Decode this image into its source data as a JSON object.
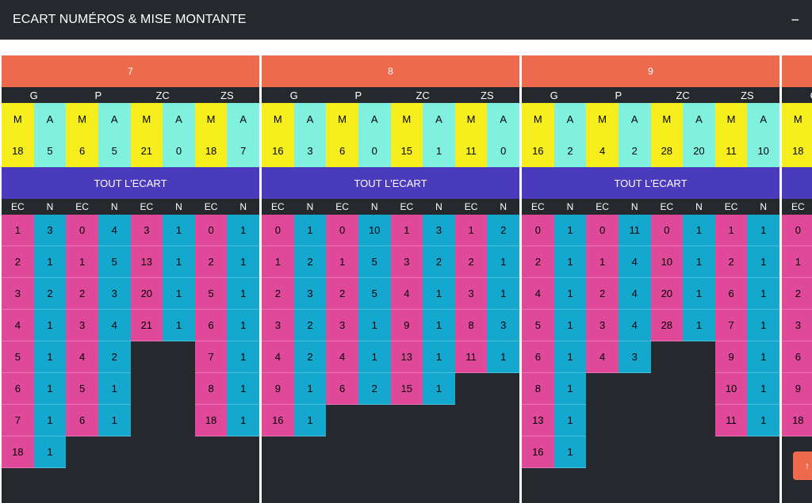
{
  "header": {
    "title": "ECART NUMÉROS & MISE MONTANTE",
    "collapse_label": "−"
  },
  "groups": [
    "G",
    "P",
    "ZC",
    "ZS"
  ],
  "ma_labels": [
    "M",
    "A"
  ],
  "col_labels": [
    "EC",
    "N"
  ],
  "banner_label": "TOUT L'ECART",
  "scroll_top_label": "↑",
  "panels": [
    {
      "number": "7",
      "mise": [
        [
          "18",
          "5"
        ],
        [
          "6",
          "5"
        ],
        [
          "21",
          "0"
        ],
        [
          "18",
          "7"
        ]
      ],
      "groups": [
        [
          [
            "1",
            "3"
          ],
          [
            "2",
            "1"
          ],
          [
            "3",
            "2"
          ],
          [
            "4",
            "1"
          ],
          [
            "5",
            "1"
          ],
          [
            "6",
            "1"
          ],
          [
            "7",
            "1"
          ],
          [
            "18",
            "1"
          ]
        ],
        [
          [
            "0",
            "4"
          ],
          [
            "1",
            "5"
          ],
          [
            "2",
            "3"
          ],
          [
            "3",
            "4"
          ],
          [
            "4",
            "2"
          ],
          [
            "5",
            "1"
          ],
          [
            "6",
            "1"
          ]
        ],
        [
          [
            "3",
            "1"
          ],
          [
            "13",
            "1"
          ],
          [
            "20",
            "1"
          ],
          [
            "21",
            "1"
          ]
        ],
        [
          [
            "0",
            "1"
          ],
          [
            "2",
            "1"
          ],
          [
            "5",
            "1"
          ],
          [
            "6",
            "1"
          ],
          [
            "7",
            "1"
          ],
          [
            "8",
            "1"
          ],
          [
            "18",
            "1"
          ]
        ]
      ]
    },
    {
      "number": "8",
      "mise": [
        [
          "16",
          "3"
        ],
        [
          "6",
          "0"
        ],
        [
          "15",
          "1"
        ],
        [
          "11",
          "0"
        ]
      ],
      "groups": [
        [
          [
            "0",
            "1"
          ],
          [
            "1",
            "2"
          ],
          [
            "2",
            "3"
          ],
          [
            "3",
            "2"
          ],
          [
            "4",
            "2"
          ],
          [
            "9",
            "1"
          ],
          [
            "16",
            "1"
          ]
        ],
        [
          [
            "0",
            "10"
          ],
          [
            "1",
            "5"
          ],
          [
            "2",
            "5"
          ],
          [
            "3",
            "1"
          ],
          [
            "4",
            "1"
          ],
          [
            "6",
            "2"
          ]
        ],
        [
          [
            "1",
            "3"
          ],
          [
            "3",
            "2"
          ],
          [
            "4",
            "1"
          ],
          [
            "9",
            "1"
          ],
          [
            "13",
            "1"
          ],
          [
            "15",
            "1"
          ]
        ],
        [
          [
            "1",
            "2"
          ],
          [
            "2",
            "1"
          ],
          [
            "3",
            "1"
          ],
          [
            "8",
            "3"
          ],
          [
            "11",
            "1"
          ]
        ]
      ]
    },
    {
      "number": "9",
      "mise": [
        [
          "16",
          "2"
        ],
        [
          "4",
          "2"
        ],
        [
          "28",
          "20"
        ],
        [
          "11",
          "10"
        ]
      ],
      "groups": [
        [
          [
            "0",
            "1"
          ],
          [
            "2",
            "1"
          ],
          [
            "4",
            "1"
          ],
          [
            "5",
            "1"
          ],
          [
            "6",
            "1"
          ],
          [
            "8",
            "1"
          ],
          [
            "13",
            "1"
          ],
          [
            "16",
            "1"
          ]
        ],
        [
          [
            "0",
            "11"
          ],
          [
            "1",
            "4"
          ],
          [
            "2",
            "4"
          ],
          [
            "3",
            "4"
          ],
          [
            "4",
            "3"
          ]
        ],
        [
          [
            "0",
            "1"
          ],
          [
            "10",
            "1"
          ],
          [
            "20",
            "1"
          ],
          [
            "28",
            "1"
          ]
        ],
        [
          [
            "1",
            "1"
          ],
          [
            "2",
            "1"
          ],
          [
            "6",
            "1"
          ],
          [
            "7",
            "1"
          ],
          [
            "9",
            "1"
          ],
          [
            "10",
            "1"
          ],
          [
            "11",
            "1"
          ]
        ]
      ]
    },
    {
      "number": "",
      "mise": [
        [
          "18",
          ""
        ],
        [
          "",
          ""
        ],
        [
          "",
          ""
        ],
        [
          "",
          ""
        ]
      ],
      "groups": [
        [
          [
            "0",
            ""
          ],
          [
            "1",
            ""
          ],
          [
            "2",
            ""
          ],
          [
            "3",
            ""
          ],
          [
            "6",
            ""
          ],
          [
            "9",
            ""
          ],
          [
            "18",
            ""
          ]
        ],
        [],
        [],
        []
      ]
    }
  ],
  "colors": {
    "header_bg": "#25282c",
    "panel_header": "#ee6a4c",
    "m_col": "#f7ee1e",
    "a_col": "#7ff1de",
    "banner": "#4a3bbd",
    "ec_col": "#e0489a",
    "n_col": "#14a8cf"
  }
}
